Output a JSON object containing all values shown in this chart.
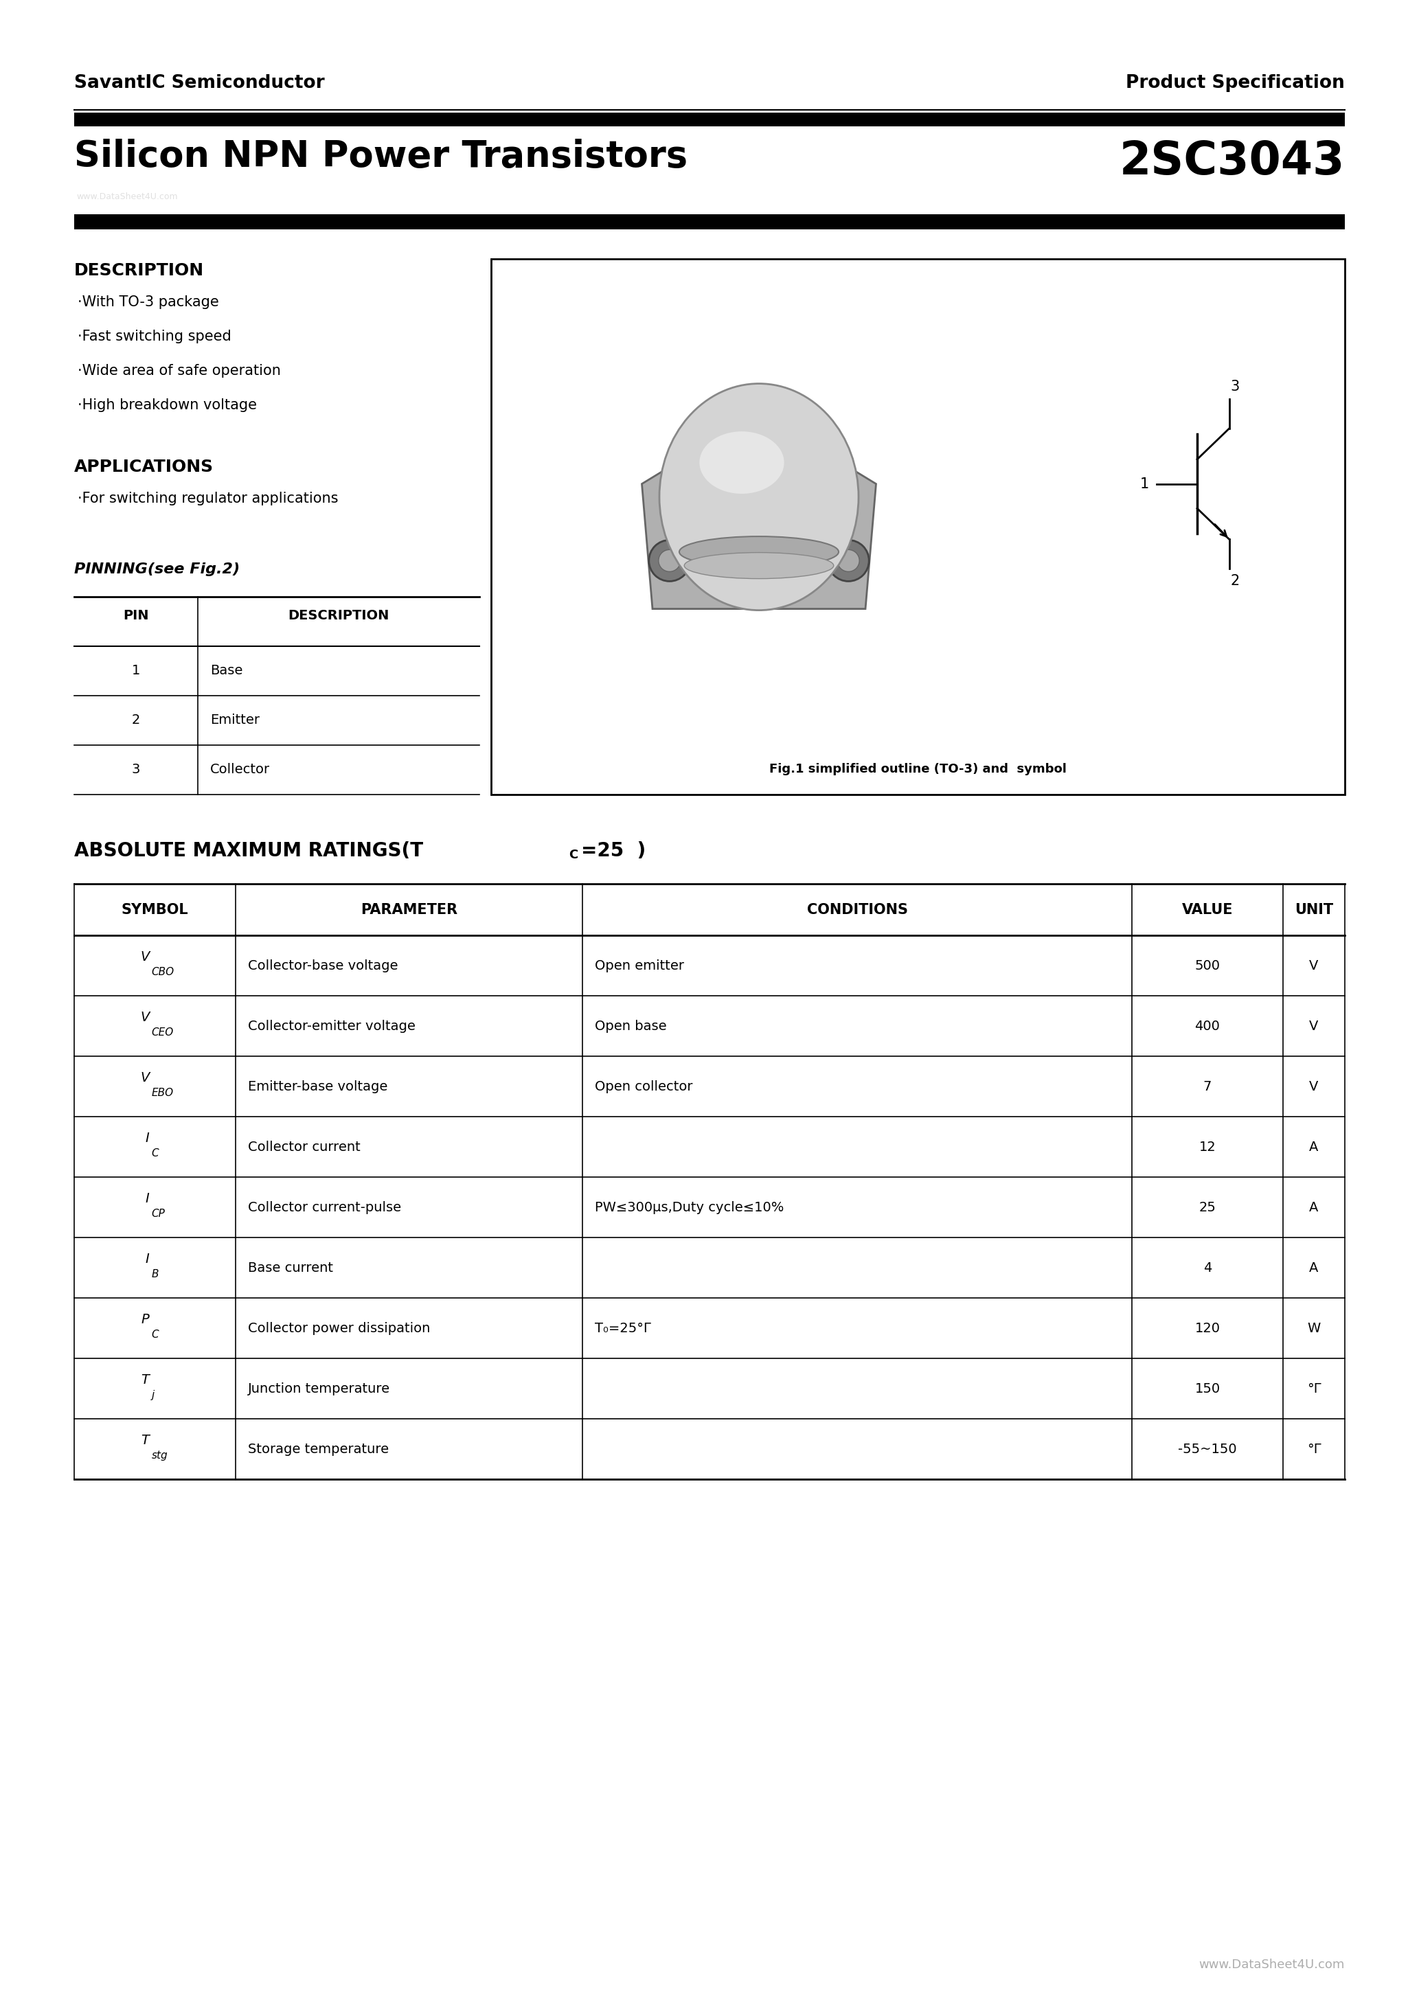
{
  "bg_color": "#ffffff",
  "header_left": "SavantIC Semiconductor",
  "header_right": "Product Specification",
  "title_left": "Silicon NPN Power Transistors",
  "title_right": "2SC3043",
  "desc_title": "DESCRIPTION",
  "desc_items": [
    "·With TO-3 package",
    "·Fast switching speed",
    "·Wide area of safe operation",
    "·High breakdown voltage"
  ],
  "app_title": "APPLICATIONS",
  "app_items": [
    "·For switching regulator applications"
  ],
  "pinning_title": "PINNING(see Fig.2)",
  "pinning_headers": [
    "PIN",
    "DESCRIPTION"
  ],
  "pinning_rows": [
    [
      "1",
      "Base"
    ],
    [
      "2",
      "Emitter"
    ],
    [
      "3",
      "Collector"
    ]
  ],
  "fig_caption": "Fig.1 simplified outline (TO-3) and  symbol",
  "ratings_headers": [
    "SYMBOL",
    "PARAMETER",
    "CONDITIONS",
    "VALUE",
    "UNIT"
  ],
  "ratings_rows": [
    [
      "V",
      "CBO",
      "Collector-base voltage",
      "Open emitter",
      "500",
      "V"
    ],
    [
      "V",
      "CEO",
      "Collector-emitter voltage",
      "Open base",
      "400",
      "V"
    ],
    [
      "V",
      "EBO",
      "Emitter-base voltage",
      "Open collector",
      "7",
      "V"
    ],
    [
      "I",
      "C",
      "Collector current",
      "",
      "12",
      "A"
    ],
    [
      "I",
      "CP",
      "Collector current-pulse",
      "PW≤300μs,Duty cycle≤10%",
      "25",
      "A"
    ],
    [
      "I",
      "B",
      "Base current",
      "",
      "4",
      "A"
    ],
    [
      "P",
      "C",
      "Collector power dissipation",
      "T₀=25°",
      "120",
      "W"
    ],
    [
      "T",
      "j",
      "Junction temperature",
      "",
      "150",
      "°"
    ],
    [
      "T",
      "stg",
      "Storage temperature",
      "",
      "-55~150",
      "°"
    ]
  ],
  "watermark": "www.DataSheet4U.com",
  "page_watermark": "www.DataSheet4U.com"
}
